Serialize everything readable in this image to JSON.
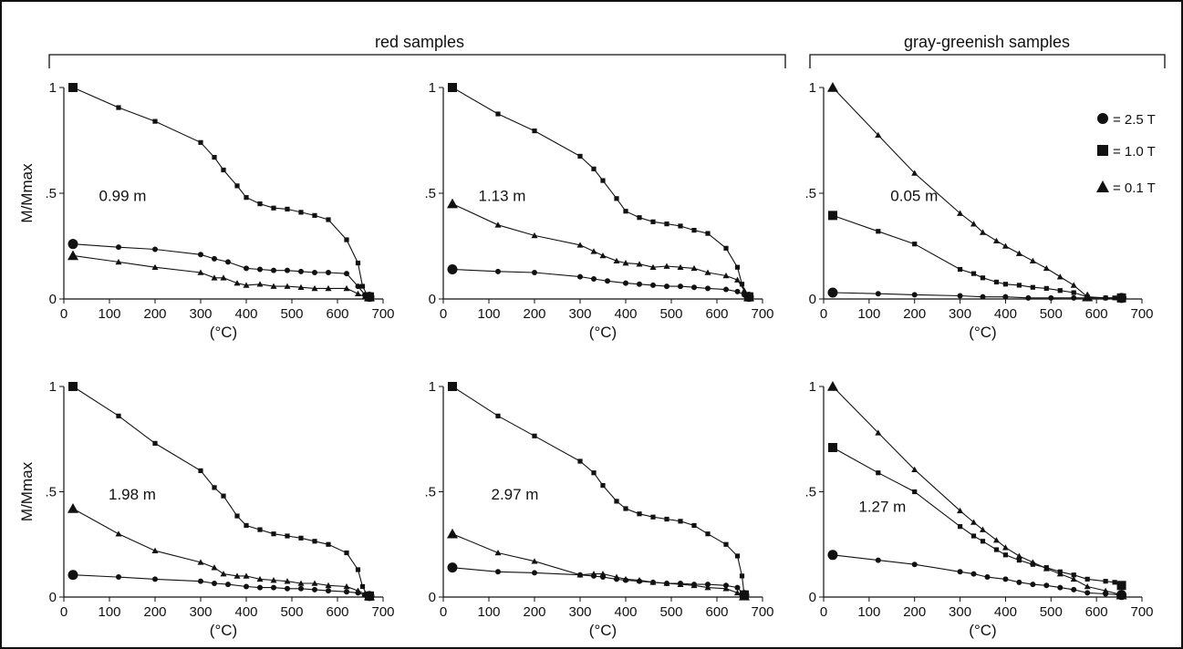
{
  "groups": {
    "red": "red samples",
    "gray": "gray-greenish samples"
  },
  "legend": [
    {
      "marker": "circle",
      "label": "= 2.5 T"
    },
    {
      "marker": "square",
      "label": "= 1.0 T"
    },
    {
      "marker": "triangle",
      "label": "= 0.1 T"
    }
  ],
  "colors": {
    "ink": "#111111",
    "background": "#ffffff"
  },
  "chart_data": [
    {
      "type": "line",
      "group": "red samples",
      "annotation": "0.99 m",
      "xlabel": "(°C)",
      "ylabel": "M/Mmax",
      "xlim": [
        0,
        700
      ],
      "ylim": [
        0,
        1
      ],
      "xticks": [
        "0",
        "100",
        "200",
        "300",
        "400",
        "500",
        "600",
        "700"
      ],
      "yticks": [
        "0",
        ".5",
        "1"
      ],
      "series": [
        {
          "name": "2.5 T",
          "marker": "circle",
          "x": [
            20,
            120,
            200,
            300,
            330,
            360,
            400,
            430,
            460,
            490,
            520,
            550,
            580,
            620,
            645,
            660,
            670
          ],
          "y": [
            0.26,
            0.245,
            0.235,
            0.21,
            0.19,
            0.175,
            0.145,
            0.14,
            0.135,
            0.135,
            0.13,
            0.125,
            0.125,
            0.12,
            0.06,
            0.02,
            0.01
          ]
        },
        {
          "name": "1.0 T",
          "marker": "square",
          "x": [
            20,
            120,
            200,
            300,
            330,
            350,
            380,
            400,
            430,
            460,
            490,
            520,
            550,
            580,
            620,
            645,
            655,
            665,
            670
          ],
          "y": [
            1.0,
            0.905,
            0.84,
            0.74,
            0.67,
            0.61,
            0.535,
            0.48,
            0.45,
            0.43,
            0.425,
            0.41,
            0.395,
            0.375,
            0.28,
            0.17,
            0.06,
            0.02,
            0.01
          ]
        },
        {
          "name": "0.1 T",
          "marker": "triangle",
          "x": [
            20,
            120,
            200,
            300,
            330,
            350,
            380,
            400,
            430,
            460,
            490,
            520,
            550,
            580,
            620,
            645,
            660,
            670
          ],
          "y": [
            0.205,
            0.175,
            0.15,
            0.125,
            0.1,
            0.1,
            0.075,
            0.065,
            0.07,
            0.06,
            0.06,
            0.055,
            0.05,
            0.05,
            0.05,
            0.025,
            0.01,
            0.01
          ]
        }
      ]
    },
    {
      "type": "line",
      "group": "red samples",
      "annotation": "1.13 m",
      "xlabel": "(°C)",
      "ylabel": "",
      "xlim": [
        0,
        700
      ],
      "ylim": [
        0,
        1
      ],
      "xticks": [
        "0",
        "100",
        "200",
        "300",
        "400",
        "500",
        "600",
        "700"
      ],
      "yticks": [
        "0",
        ".5",
        "1"
      ],
      "series": [
        {
          "name": "2.5 T",
          "marker": "circle",
          "x": [
            20,
            120,
            200,
            300,
            330,
            360,
            400,
            430,
            460,
            490,
            520,
            550,
            580,
            620,
            645,
            660,
            670
          ],
          "y": [
            0.14,
            0.13,
            0.125,
            0.105,
            0.095,
            0.085,
            0.075,
            0.07,
            0.065,
            0.06,
            0.06,
            0.055,
            0.05,
            0.045,
            0.035,
            0.02,
            0.01
          ]
        },
        {
          "name": "1.0 T",
          "marker": "square",
          "x": [
            20,
            120,
            200,
            300,
            330,
            350,
            380,
            400,
            430,
            460,
            490,
            520,
            550,
            580,
            620,
            645,
            655,
            665,
            670
          ],
          "y": [
            1.0,
            0.875,
            0.795,
            0.675,
            0.615,
            0.56,
            0.475,
            0.415,
            0.385,
            0.365,
            0.355,
            0.345,
            0.325,
            0.31,
            0.24,
            0.15,
            0.07,
            0.02,
            0.01
          ]
        },
        {
          "name": "0.1 T",
          "marker": "triangle",
          "x": [
            20,
            120,
            200,
            300,
            330,
            350,
            380,
            400,
            430,
            460,
            490,
            520,
            550,
            580,
            620,
            645,
            660,
            670
          ],
          "y": [
            0.45,
            0.35,
            0.3,
            0.255,
            0.225,
            0.205,
            0.18,
            0.17,
            0.165,
            0.15,
            0.155,
            0.15,
            0.145,
            0.125,
            0.11,
            0.09,
            0.04,
            0.01
          ]
        }
      ]
    },
    {
      "type": "line",
      "group": "gray-greenish samples",
      "annotation": "0.05 m",
      "xlabel": "(°C)",
      "ylabel": "",
      "xlim": [
        0,
        700
      ],
      "ylim": [
        0,
        1
      ],
      "xticks": [
        "0",
        "100",
        "200",
        "300",
        "400",
        "500",
        "600",
        "700"
      ],
      "yticks": [
        "0",
        ".5",
        "1"
      ],
      "series": [
        {
          "name": "2.5 T",
          "marker": "circle",
          "x": [
            20,
            120,
            200,
            300,
            350,
            400,
            450,
            500,
            550,
            580,
            620,
            655
          ],
          "y": [
            0.03,
            0.025,
            0.02,
            0.015,
            0.01,
            0.01,
            0.005,
            0.005,
            0.005,
            0.005,
            0.005,
            0.005
          ]
        },
        {
          "name": "1.0 T",
          "marker": "square",
          "x": [
            20,
            120,
            200,
            300,
            330,
            350,
            380,
            400,
            430,
            460,
            490,
            520,
            550,
            580,
            620,
            640,
            655
          ],
          "y": [
            0.395,
            0.32,
            0.26,
            0.14,
            0.12,
            0.1,
            0.08,
            0.07,
            0.065,
            0.055,
            0.05,
            0.04,
            0.03,
            0.01,
            0.005,
            0.005,
            0.005
          ]
        },
        {
          "name": "0.1 T",
          "marker": "triangle",
          "x": [
            20,
            120,
            200,
            300,
            330,
            350,
            380,
            400,
            430,
            460,
            490,
            520,
            550,
            580
          ],
          "y": [
            1.0,
            0.775,
            0.595,
            0.405,
            0.355,
            0.315,
            0.275,
            0.25,
            0.215,
            0.18,
            0.145,
            0.105,
            0.065,
            0.01
          ]
        }
      ]
    },
    {
      "type": "line",
      "group": "red samples",
      "annotation": "1.98 m",
      "xlabel": "(°C)",
      "ylabel": "M/Mmax",
      "xlim": [
        0,
        700
      ],
      "ylim": [
        0,
        1
      ],
      "xticks": [
        "0",
        "100",
        "200",
        "300",
        "400",
        "500",
        "600",
        "700"
      ],
      "yticks": [
        "0",
        ".5",
        "1"
      ],
      "series": [
        {
          "name": "2.5 T",
          "marker": "circle",
          "x": [
            20,
            120,
            200,
            300,
            330,
            360,
            400,
            430,
            460,
            490,
            520,
            550,
            580,
            620,
            645,
            660,
            670
          ],
          "y": [
            0.105,
            0.095,
            0.085,
            0.075,
            0.065,
            0.06,
            0.05,
            0.045,
            0.045,
            0.04,
            0.04,
            0.035,
            0.03,
            0.025,
            0.02,
            0.01,
            0.005
          ]
        },
        {
          "name": "1.0 T",
          "marker": "square",
          "x": [
            20,
            120,
            200,
            300,
            330,
            350,
            380,
            400,
            430,
            460,
            490,
            520,
            550,
            580,
            620,
            645,
            655,
            665,
            670
          ],
          "y": [
            1.0,
            0.86,
            0.73,
            0.6,
            0.52,
            0.48,
            0.385,
            0.34,
            0.32,
            0.3,
            0.29,
            0.28,
            0.265,
            0.25,
            0.21,
            0.13,
            0.05,
            0.01,
            0.005
          ]
        },
        {
          "name": "0.1 T",
          "marker": "triangle",
          "x": [
            20,
            120,
            200,
            300,
            330,
            350,
            380,
            400,
            430,
            460,
            490,
            520,
            550,
            580,
            620,
            645,
            660,
            670
          ],
          "y": [
            0.42,
            0.3,
            0.22,
            0.165,
            0.14,
            0.11,
            0.1,
            0.1,
            0.085,
            0.08,
            0.075,
            0.065,
            0.065,
            0.055,
            0.05,
            0.03,
            0.015,
            0.005
          ]
        }
      ]
    },
    {
      "type": "line",
      "group": "red samples",
      "annotation": "2.97 m",
      "xlabel": "(°C)",
      "ylabel": "",
      "xlim": [
        0,
        700
      ],
      "ylim": [
        0,
        1
      ],
      "xticks": [
        "0",
        "100",
        "200",
        "300",
        "400",
        "500",
        "600",
        "700"
      ],
      "yticks": [
        "0",
        ".5",
        "1"
      ],
      "series": [
        {
          "name": "2.5 T",
          "marker": "circle",
          "x": [
            20,
            120,
            200,
            300,
            330,
            350,
            380,
            400,
            430,
            460,
            490,
            520,
            550,
            580,
            620,
            645,
            660
          ],
          "y": [
            0.14,
            0.12,
            0.115,
            0.105,
            0.1,
            0.095,
            0.085,
            0.08,
            0.075,
            0.07,
            0.065,
            0.065,
            0.06,
            0.06,
            0.055,
            0.045,
            0.01
          ]
        },
        {
          "name": "1.0 T",
          "marker": "square",
          "x": [
            20,
            120,
            200,
            300,
            330,
            350,
            380,
            400,
            430,
            460,
            490,
            520,
            550,
            580,
            620,
            645,
            655,
            660
          ],
          "y": [
            1.0,
            0.86,
            0.765,
            0.645,
            0.59,
            0.53,
            0.455,
            0.42,
            0.395,
            0.38,
            0.37,
            0.36,
            0.34,
            0.3,
            0.25,
            0.195,
            0.1,
            0.01
          ]
        },
        {
          "name": "0.1 T",
          "marker": "triangle",
          "x": [
            20,
            120,
            200,
            300,
            330,
            350,
            380,
            400,
            430,
            460,
            490,
            520,
            550,
            580,
            620,
            645,
            660
          ],
          "y": [
            0.3,
            0.21,
            0.17,
            0.105,
            0.11,
            0.11,
            0.095,
            0.085,
            0.08,
            0.07,
            0.065,
            0.06,
            0.055,
            0.045,
            0.04,
            0.02,
            0.005
          ]
        }
      ]
    },
    {
      "type": "line",
      "group": "gray-greenish samples",
      "annotation": "1.27 m",
      "xlabel": "(°C)",
      "ylabel": "",
      "xlim": [
        0,
        700
      ],
      "ylim": [
        0,
        1
      ],
      "xticks": [
        "0",
        "100",
        "200",
        "300",
        "400",
        "500",
        "600",
        "700"
      ],
      "yticks": [
        "0",
        ".5",
        "1"
      ],
      "series": [
        {
          "name": "2.5 T",
          "marker": "circle",
          "x": [
            20,
            120,
            200,
            300,
            330,
            360,
            400,
            430,
            460,
            490,
            520,
            550,
            580,
            620,
            655
          ],
          "y": [
            0.2,
            0.175,
            0.155,
            0.12,
            0.11,
            0.095,
            0.085,
            0.07,
            0.06,
            0.055,
            0.045,
            0.035,
            0.02,
            0.015,
            0.01
          ]
        },
        {
          "name": "1.0 T",
          "marker": "square",
          "x": [
            20,
            120,
            200,
            300,
            330,
            350,
            380,
            400,
            430,
            460,
            490,
            520,
            550,
            580,
            620,
            640,
            655
          ],
          "y": [
            0.71,
            0.59,
            0.5,
            0.335,
            0.29,
            0.265,
            0.225,
            0.2,
            0.175,
            0.155,
            0.14,
            0.12,
            0.105,
            0.085,
            0.075,
            0.07,
            0.055
          ]
        },
        {
          "name": "0.1 T",
          "marker": "triangle",
          "x": [
            20,
            120,
            200,
            300,
            330,
            350,
            380,
            400,
            430,
            460,
            490,
            520,
            550,
            580,
            620,
            655
          ],
          "y": [
            1.0,
            0.78,
            0.605,
            0.41,
            0.355,
            0.32,
            0.27,
            0.235,
            0.195,
            0.165,
            0.135,
            0.11,
            0.085,
            0.05,
            0.03,
            0.01
          ]
        }
      ]
    }
  ]
}
